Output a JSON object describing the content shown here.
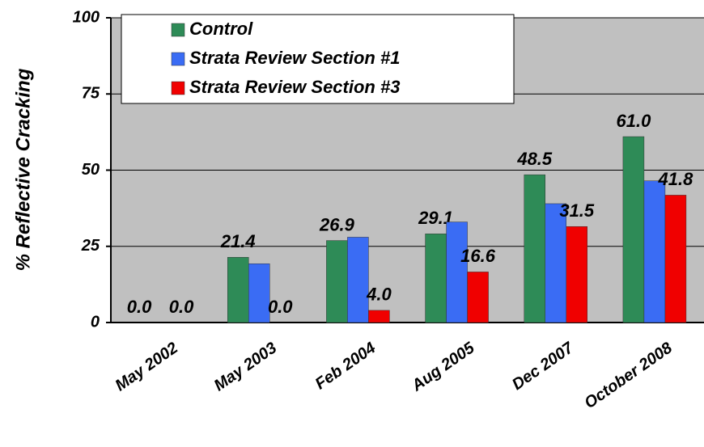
{
  "chart_data": {
    "type": "bar",
    "y_label": "% Reflective Cracking",
    "categories": [
      "May 2002",
      "May 2003",
      "Feb 2004",
      "Aug 2005",
      "Dec 2007",
      "October 2008"
    ],
    "series": [
      {
        "name": "Control",
        "color": "#2e8b57",
        "values": [
          0,
          21.4,
          26.9,
          29.1,
          48.5,
          61.0
        ],
        "value_labels": [
          "0.0",
          "21.4",
          "26.9",
          "29.1",
          "48.5",
          "61.0"
        ]
      },
      {
        "name": "Strata Review Section #1",
        "color": "#3a6cf4",
        "values": [
          0,
          19.3,
          28,
          33,
          39,
          46.5
        ]
      },
      {
        "name": "Strata Review Section #3",
        "color": "#f00000",
        "values": [
          0,
          0,
          4.0,
          16.6,
          31.5,
          41.8
        ],
        "value_labels": [
          "0.0",
          "0.0",
          "4.0",
          "16.6",
          "31.5",
          "41.8"
        ]
      }
    ],
    "ylim": [
      0,
      100
    ],
    "yticks": [
      0,
      25,
      50,
      75,
      100
    ],
    "grid": true,
    "legend": "top-left"
  }
}
